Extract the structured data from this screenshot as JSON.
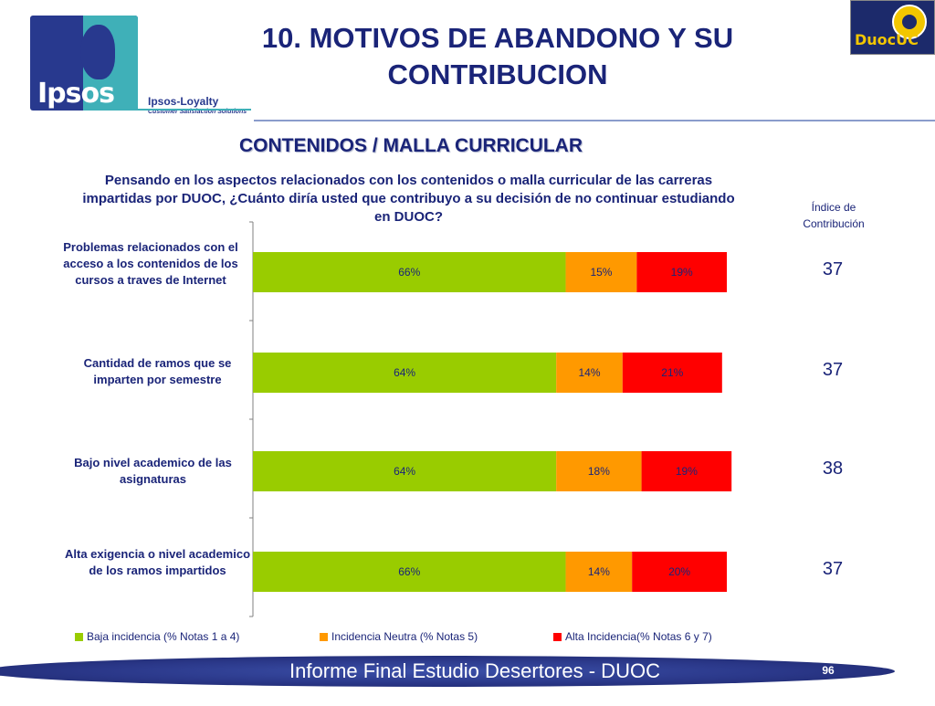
{
  "header": {
    "title_line1": "10. MOTIVOS DE ABANDONO Y SU",
    "title_line2": "CONTRIBUCION",
    "ipsos_wordmark": "Ipsos",
    "loyalty_title": "Ipsos-Loyalty",
    "loyalty_tagline": "Customer Satisfaction Solutions",
    "duoc_logo_text": "DuocUC"
  },
  "subtitle": "CONTENIDOS / MALLA CURRICULAR",
  "question_line1": "Pensando en los aspectos relacionados con los contenidos o malla curricular de las carreras",
  "question_line2": "impartidas por DUOC, ¿Cuánto diría usted que contribuyo a su decisión de no continuar estudiando",
  "question_line3": "en DUOC?",
  "indice_header_line1": "Índice de",
  "indice_header_line2": "Contribución",
  "chart_data": {
    "type": "bar",
    "orientation": "horizontal",
    "stacked": true,
    "categories": [
      "Problemas relacionados con el acceso a los contenidos de los cursos a traves de Internet",
      "Cantidad de ramos que se imparten por semestre",
      "Bajo nivel academico de las asignaturas",
      "Alta exigencia o nivel academico de los ramos impartidos"
    ],
    "series": [
      {
        "name": "Baja incidencia (% Notas 1 a 4)",
        "values": [
          66,
          64,
          64,
          66
        ],
        "labels": [
          "66%",
          "64%",
          "64%",
          "66%"
        ],
        "color": "#99cc00"
      },
      {
        "name": "Incidencia Neutra (% Notas 5)",
        "values": [
          15,
          14,
          18,
          14
        ],
        "labels": [
          "15%",
          "14%",
          "18%",
          "14%"
        ],
        "color": "#ff9900"
      },
      {
        "name": "Alta Incidencia(% Notas 6 y 7)",
        "values": [
          19,
          21,
          19,
          20
        ],
        "labels": [
          "19%",
          "21%",
          "19%",
          "20%"
        ],
        "color": "#ff0000"
      }
    ],
    "indice": [
      "37",
      "37",
      "38",
      "37"
    ],
    "xlim": [
      0,
      100
    ],
    "grid": false,
    "legend_position": "bottom"
  },
  "footer": {
    "text": "Informe Final Estudio Desertores - DUOC",
    "page_number": "96"
  }
}
